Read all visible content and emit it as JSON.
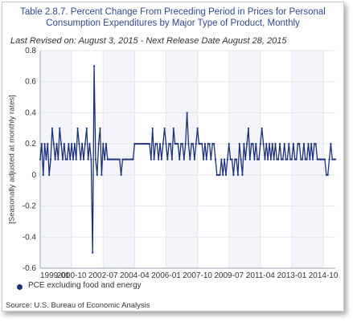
{
  "chart_data": {
    "type": "line",
    "title_line1": "Table 2.8.7. Percent Change From Preceding Period in Prices for Personal",
    "title_line2": "Consumption Expenditures by Major Type of Product, Monthly",
    "subtitle": "Last Revised on: August 3, 2015 - Next Release Date August 28, 2015",
    "ylabel": "[Seasonally adjusted at monthly rates]",
    "xlabel": "",
    "ylim": [
      -0.6,
      0.8
    ],
    "yticks": [
      -0.6,
      -0.4,
      -0.2,
      0,
      0.2,
      0.4,
      0.6,
      0.8
    ],
    "x_start": "1999-01",
    "x_end": "2015-06",
    "xticks": [
      "1999-01",
      "2000-10",
      "2002-07",
      "2004-04",
      "2006-01",
      "2007-10",
      "2009-07",
      "2011-04",
      "2013-01",
      "2014-10"
    ],
    "grid": true,
    "legend_position": "bottom-left",
    "series": [
      {
        "name": "PCE excluding food and energy",
        "color": "#1a2f7a",
        "values": [
          0.1,
          0.2,
          0.0,
          0.2,
          0.1,
          0.2,
          0.0,
          0.1,
          0.3,
          0.2,
          0.1,
          0.2,
          0.1,
          0.3,
          0.2,
          0.1,
          0.2,
          0.1,
          0.1,
          0.2,
          0.1,
          0.2,
          0.1,
          0.2,
          0.1,
          0.3,
          0.2,
          0.1,
          0.2,
          0.1,
          0.2,
          0.3,
          0.1,
          0.2,
          0.1,
          -0.5,
          0.7,
          0.1,
          0.0,
          0.2,
          0.3,
          0.0,
          0.2,
          0.1,
          0.2,
          0.1,
          0.1,
          0.1,
          0.1,
          0.1,
          0.1,
          0.1,
          0.1,
          0.1,
          0.0,
          0.1,
          0.1,
          0.1,
          0.1,
          0.1,
          0.1,
          0.1,
          0.1,
          0.2,
          0.2,
          0.2,
          0.2,
          0.2,
          0.2,
          0.2,
          0.2,
          0.2,
          0.2,
          0.2,
          0.1,
          0.3,
          0.1,
          0.2,
          0.2,
          0.1,
          0.2,
          0.1,
          0.2,
          0.3,
          0.2,
          0.1,
          0.2,
          0.2,
          0.1,
          0.3,
          0.2,
          0.2,
          0.2,
          0.1,
          0.2,
          0.2,
          0.1,
          0.2,
          0.4,
          0.2,
          0.1,
          0.2,
          0.2,
          0.1,
          0.2,
          0.3,
          0.2,
          0.2,
          0.2,
          0.1,
          0.2,
          0.1,
          0.2,
          0.2,
          0.1,
          0.2,
          0.2,
          0.1,
          0.0,
          0.0,
          0.0,
          0.1,
          0.0,
          0.1,
          0.0,
          0.1,
          0.2,
          0.1,
          0.1,
          0.0,
          0.1,
          0.1,
          0.0,
          0.2,
          0.1,
          0.0,
          0.2,
          0.1,
          0.2,
          0.3,
          0.1,
          0.2,
          0.2,
          0.1,
          0.2,
          0.1,
          0.1,
          0.2,
          0.3,
          0.2,
          0.1,
          0.2,
          0.1,
          0.2,
          0.1,
          0.2,
          0.1,
          0.2,
          0.1,
          0.1,
          0.2,
          0.1,
          0.1,
          0.2,
          0.1,
          0.1,
          0.2,
          0.1,
          0.1,
          0.2,
          0.1,
          0.1,
          0.2,
          0.2,
          0.1,
          0.1,
          0.2,
          0.1,
          0.1,
          0.2,
          0.1,
          0.2,
          0.1,
          0.2,
          0.2,
          0.1,
          0.1,
          0.1,
          0.1,
          0.1,
          0.1,
          0.0,
          0.0,
          0.1,
          0.2,
          0.1,
          0.1,
          0.1
        ]
      }
    ]
  },
  "legend_label": "PCE excluding food and energy",
  "source": "Source: U.S. Bureau of Economic  Analysis"
}
